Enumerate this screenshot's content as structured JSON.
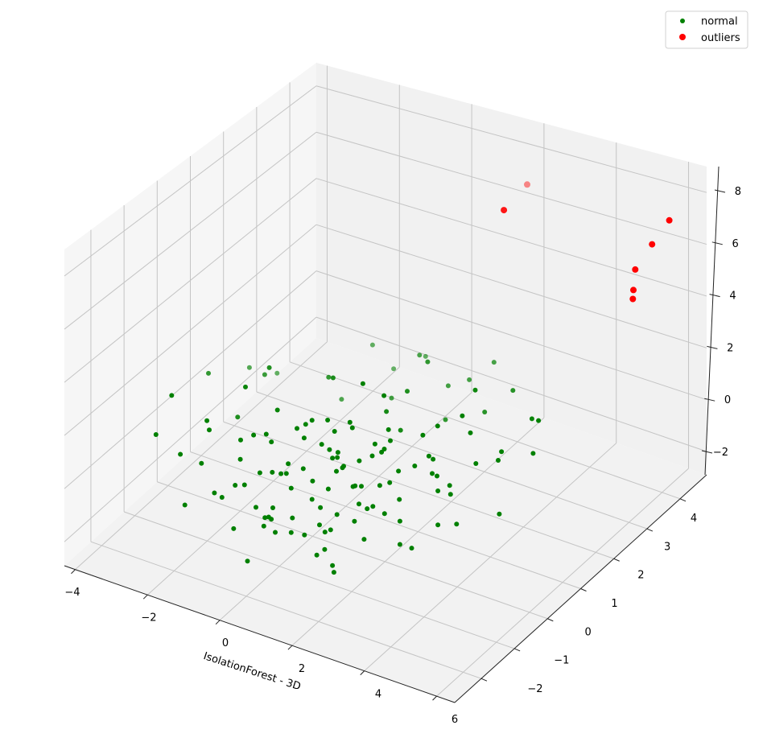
{
  "chart_data": {
    "type": "scatter",
    "projection": "3d",
    "xlabel": "IsolationForest - 3D",
    "ylabel": "",
    "zlabel": "",
    "xlim": [
      -4.3,
      6.5
    ],
    "ylim": [
      -2.8,
      4.8
    ],
    "zlim": [
      -2.9,
      9.0
    ],
    "xticks": [
      "−4",
      "−2",
      "0",
      "2",
      "4",
      "6"
    ],
    "xtick_values": [
      -4,
      -2,
      0,
      2,
      4,
      6
    ],
    "yticks": [
      "−2",
      "−1",
      "0",
      "1",
      "2",
      "3",
      "4"
    ],
    "ytick_values": [
      -2,
      -1,
      0,
      1,
      2,
      3,
      4
    ],
    "zticks": [
      "−2",
      "0",
      "2",
      "4",
      "6",
      "8"
    ],
    "ztick_values": [
      -2,
      0,
      2,
      4,
      6,
      8
    ],
    "grid": true,
    "legend": {
      "placement": "top-right",
      "entries": [
        "normal",
        "outliers"
      ]
    },
    "series": [
      {
        "name": "normal",
        "color": "#008000",
        "points": [
          [
            0.5,
            0.2,
            0.1
          ],
          [
            0.8,
            -0.4,
            -0.3
          ],
          [
            1.2,
            0.1,
            0.4
          ],
          [
            -0.3,
            0.6,
            -0.2
          ],
          [
            0.1,
            -0.9,
            0.5
          ],
          [
            1.6,
            -1.2,
            -0.6
          ],
          [
            2.1,
            0.3,
            0.2
          ],
          [
            -1.1,
            -0.2,
            0.7
          ],
          [
            0.9,
            1.1,
            -0.5
          ],
          [
            -0.6,
            -1.4,
            0.3
          ],
          [
            2.5,
            -0.7,
            0.9
          ],
          [
            1.4,
            0.8,
            -1.1
          ],
          [
            -1.8,
            0.9,
            0.1
          ],
          [
            0.3,
            -1.8,
            -0.4
          ],
          [
            3.1,
            0.4,
            -0.2
          ],
          [
            -2.4,
            -0.5,
            0.6
          ],
          [
            1.9,
            1.7,
            0.3
          ],
          [
            0.0,
            0.0,
            -0.8
          ],
          [
            -0.9,
            1.6,
            1.0
          ],
          [
            2.8,
            -1.5,
            -0.1
          ],
          [
            1.1,
            -0.6,
            1.2
          ],
          [
            -1.5,
            -1.1,
            -0.9
          ],
          [
            0.6,
            2.2,
            0.5
          ],
          [
            3.6,
            1.0,
            0.4
          ],
          [
            -3.2,
            0.3,
            -0.3
          ],
          [
            1.7,
            -2.1,
            0.2
          ],
          [
            -0.2,
            2.6,
            -0.6
          ],
          [
            2.3,
            2.4,
            1.1
          ],
          [
            -2.7,
            1.5,
            0.4
          ],
          [
            0.4,
            -2.4,
            -1.0
          ],
          [
            4.0,
            -0.2,
            0.7
          ],
          [
            -3.6,
            -0.8,
            0.2
          ],
          [
            1.3,
            0.4,
            -1.6
          ],
          [
            0.7,
            -0.1,
            1.5
          ],
          [
            -1.3,
            0.2,
            -1.3
          ],
          [
            2.0,
            -0.3,
            1.8
          ],
          [
            0.2,
            1.3,
            1.6
          ],
          [
            -0.5,
            -0.7,
            -1.7
          ],
          [
            2.6,
            1.3,
            -1.2
          ],
          [
            -2.1,
            -1.7,
            1.1
          ],
          [
            1.0,
            3.0,
            0.0
          ],
          [
            3.3,
            2.0,
            -0.7
          ],
          [
            -1.0,
            2.9,
            0.8
          ],
          [
            4.4,
            0.9,
            1.3
          ],
          [
            -3.0,
            2.2,
            -0.5
          ],
          [
            0.9,
            -1.0,
            0.0
          ],
          [
            1.5,
            -0.9,
            -0.4
          ],
          [
            0.2,
            -0.5,
            0.3
          ],
          [
            1.8,
            -1.6,
            -0.8
          ],
          [
            0.6,
            -1.3,
            0.6
          ],
          [
            -0.4,
            -0.3,
            0.0
          ],
          [
            1.3,
            -0.2,
            -0.2
          ],
          [
            2.2,
            -1.0,
            0.4
          ],
          [
            0.0,
            -1.2,
            -0.5
          ],
          [
            1.0,
            -1.7,
            0.1
          ],
          [
            0.4,
            0.5,
            -0.6
          ],
          [
            2.4,
            0.0,
            -0.4
          ],
          [
            -0.8,
            0.4,
            0.4
          ],
          [
            1.6,
            0.6,
            0.8
          ],
          [
            0.8,
            -2.0,
            -0.2
          ],
          [
            3.0,
            -1.1,
            0.5
          ],
          [
            -1.6,
            0.5,
            -0.6
          ],
          [
            0.3,
            1.9,
            -0.1
          ],
          [
            2.9,
            1.6,
            0.6
          ],
          [
            -2.3,
            1.2,
            1.2
          ],
          [
            1.2,
            2.7,
            -0.9
          ],
          [
            3.8,
            0.2,
            -0.9
          ],
          [
            -0.7,
            -2.2,
            0.8
          ],
          [
            2.7,
            -2.3,
            -0.5
          ],
          [
            -1.9,
            -0.1,
            0.0
          ],
          [
            0.1,
            3.3,
            0.4
          ],
          [
            1.9,
            3.4,
            0.9
          ],
          [
            -1.4,
            2.4,
            -1.0
          ],
          [
            3.5,
            2.8,
            0.1
          ],
          [
            4.6,
            1.8,
            1.6
          ],
          [
            -3.8,
            1.0,
            0.5
          ],
          [
            -2.8,
            -0.3,
            -1.1
          ],
          [
            0.5,
            -0.8,
            1.9
          ],
          [
            1.4,
            -1.4,
            -1.4
          ],
          [
            2.0,
            0.9,
            -0.3
          ],
          [
            0.7,
            0.0,
            0.6
          ],
          [
            1.1,
            0.6,
            0.0
          ],
          [
            -0.1,
            -1.6,
            -0.1
          ],
          [
            2.5,
            0.6,
            1.4
          ],
          [
            -1.2,
            1.1,
            -0.4
          ],
          [
            0.6,
            1.5,
            1.1
          ],
          [
            1.5,
            2.0,
            -1.5
          ],
          [
            -0.3,
            -1.0,
            -1.2
          ],
          [
            3.2,
            -0.5,
            -1.3
          ],
          [
            4.2,
            -0.8,
            0.3
          ],
          [
            -2.5,
            0.7,
            0.9
          ],
          [
            0.8,
            2.6,
            1.3
          ],
          [
            2.1,
            2.9,
            -0.4
          ],
          [
            -0.6,
            3.1,
            -0.2
          ],
          [
            3.9,
            2.4,
            -0.6
          ],
          [
            -3.4,
            1.8,
            0.0
          ],
          [
            1.7,
            -2.5,
            0.7
          ],
          [
            0.2,
            -2.6,
            0.3
          ],
          [
            -1.7,
            -2.0,
            -0.3
          ],
          [
            2.9,
            -1.9,
            1.0
          ],
          [
            1.0,
            1.2,
            0.3
          ],
          [
            0.4,
            -0.2,
            -1.4
          ],
          [
            1.8,
            0.2,
            1.0
          ],
          [
            -0.9,
            -0.8,
            1.4
          ],
          [
            2.6,
            -0.2,
            -0.9
          ],
          [
            0.0,
            0.9,
            -1.3
          ],
          [
            1.3,
            -0.7,
            0.9
          ],
          [
            0.9,
            0.3,
            -0.9
          ],
          [
            -0.2,
            0.2,
            1.2
          ],
          [
            1.6,
            -0.1,
            -1.0
          ],
          [
            0.5,
            -1.5,
            1.3
          ],
          [
            2.3,
            1.0,
            0.1
          ],
          [
            -1.0,
            -0.5,
            -0.4
          ],
          [
            0.3,
            0.8,
            0.7
          ],
          [
            1.2,
            -1.1,
            -0.7
          ],
          [
            2.8,
            0.7,
            -0.1
          ],
          [
            -0.5,
            1.0,
            0.2
          ],
          [
            0.7,
            -2.2,
            0.5
          ],
          [
            1.9,
            -0.6,
            0.5
          ],
          [
            0.1,
            0.4,
            0.0
          ],
          [
            3.4,
            -0.1,
            1.1
          ],
          [
            -2.0,
            0.0,
            -0.9
          ],
          [
            0.6,
            2.0,
            -0.8
          ],
          [
            2.4,
            1.9,
            0.7
          ],
          [
            -1.3,
            1.9,
            0.5
          ],
          [
            1.4,
            3.2,
            0.2
          ],
          [
            -2.9,
            0.9,
            -0.7
          ],
          [
            4.8,
            0.4,
            -0.3
          ],
          [
            0.8,
            -0.5,
            -1.8
          ],
          [
            1.1,
            0.0,
            1.7
          ],
          [
            -0.4,
            -1.9,
            0.9
          ],
          [
            2.2,
            -1.8,
            -1.0
          ],
          [
            3.7,
            -1.4,
            0.0
          ],
          [
            -3.9,
            0.0,
            0.7
          ],
          [
            0.3,
            2.9,
            1.0
          ],
          [
            2.7,
            3.1,
            0.5
          ]
        ]
      },
      {
        "name": "outliers",
        "color": "#ff0000",
        "points": [
          [
            6.2,
            4.0,
            7.6
          ],
          [
            6.0,
            3.7,
            6.9
          ],
          [
            5.9,
            3.3,
            6.3
          ],
          [
            5.85,
            3.3,
            5.5
          ],
          [
            6.2,
            2.9,
            5.7
          ],
          [
            1.9,
            3.7,
            6.6
          ],
          [
            1.9,
            4.4,
            6.9
          ]
        ]
      }
    ]
  }
}
